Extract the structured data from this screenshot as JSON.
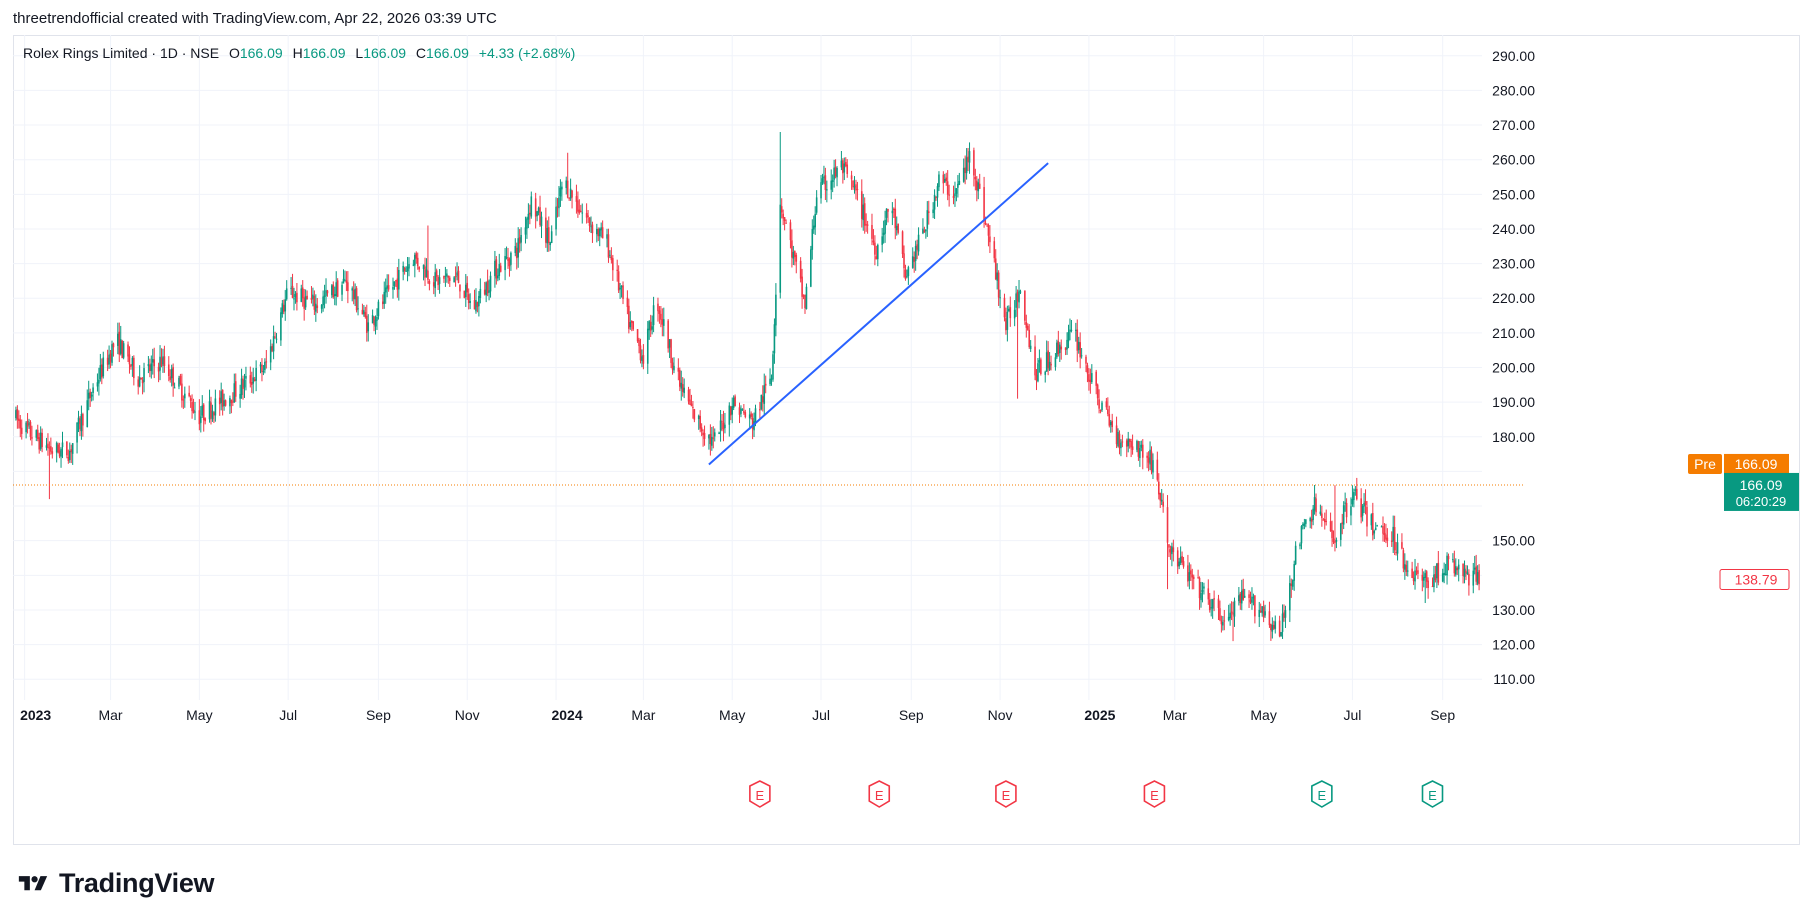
{
  "header": {
    "attribution": "threetrendofficial created with TradingView.com, Apr 22, 2026 03:39 UTC"
  },
  "legend": {
    "symbol": "Rolex Rings Limited · 1D · NSE",
    "open_label": "O",
    "open": "166.09",
    "high_label": "H",
    "high": "166.09",
    "low_label": "L",
    "low": "166.09",
    "close_label": "C",
    "close": "166.09",
    "change": "+4.33 (+2.68%)"
  },
  "footer": {
    "brand": "TradingView"
  },
  "colors": {
    "up": "#089981",
    "down": "#f23645",
    "trendline": "#2962ff",
    "pre_badge": "#f57c00",
    "grid": "#f0f3fa",
    "text": "#131722"
  },
  "chart_data": {
    "type": "candlestick",
    "y_axis": {
      "min": 104,
      "max": 296,
      "ticks": [
        110,
        120,
        130,
        140,
        150,
        160,
        170,
        180,
        190,
        200,
        210,
        220,
        230,
        240,
        250,
        260,
        270,
        280,
        290
      ],
      "tick_labels": [
        "110.00",
        "120.00",
        "130.00",
        "",
        "150.00",
        "",
        "",
        "180.00",
        "190.00",
        "200.00",
        "210.00",
        "220.00",
        "230.00",
        "240.00",
        "250.00",
        "260.00",
        "270.00",
        "280.00",
        "290.00"
      ],
      "scale": "linear",
      "position": "right"
    },
    "x_axis": {
      "start": "2022-12-24",
      "end": "2025-09-28",
      "ticks": [
        {
          "date": "2023-01-01",
          "label": "2023",
          "bold": true
        },
        {
          "date": "2023-03-01",
          "label": "Mar"
        },
        {
          "date": "2023-05-01",
          "label": "May"
        },
        {
          "date": "2023-07-01",
          "label": "Jul"
        },
        {
          "date": "2023-09-01",
          "label": "Sep"
        },
        {
          "date": "2023-11-01",
          "label": "Nov"
        },
        {
          "date": "2024-01-01",
          "label": "2024",
          "bold": true
        },
        {
          "date": "2024-03-01",
          "label": "Mar"
        },
        {
          "date": "2024-05-01",
          "label": "May"
        },
        {
          "date": "2024-07-01",
          "label": "Jul"
        },
        {
          "date": "2024-09-01",
          "label": "Sep"
        },
        {
          "date": "2024-11-01",
          "label": "Nov"
        },
        {
          "date": "2025-01-01",
          "label": "2025",
          "bold": true
        },
        {
          "date": "2025-03-01",
          "label": "Mar"
        },
        {
          "date": "2025-05-01",
          "label": "May"
        },
        {
          "date": "2025-07-01",
          "label": "Jul"
        },
        {
          "date": "2025-09-01",
          "label": "Sep"
        }
      ]
    },
    "grid": true,
    "price_path": [
      [
        "2022-12-24",
        186
      ],
      [
        "2023-01-05",
        181
      ],
      [
        "2023-01-20",
        176
      ],
      [
        "2023-02-01",
        176
      ],
      [
        "2023-02-18",
        195
      ],
      [
        "2023-03-05",
        208
      ],
      [
        "2023-03-20",
        197
      ],
      [
        "2023-04-05",
        202
      ],
      [
        "2023-05-01",
        186
      ],
      [
        "2023-05-25",
        193
      ],
      [
        "2023-06-15",
        200
      ],
      [
        "2023-07-01",
        222
      ],
      [
        "2023-07-20",
        218
      ],
      [
        "2023-08-10",
        225
      ],
      [
        "2023-08-25",
        212
      ],
      [
        "2023-09-10",
        223
      ],
      [
        "2023-09-25",
        232
      ],
      [
        "2023-10-10",
        225
      ],
      [
        "2023-10-25",
        226
      ],
      [
        "2023-11-05",
        217
      ],
      [
        "2023-11-20",
        228
      ],
      [
        "2023-12-05",
        234
      ],
      [
        "2023-12-15",
        248
      ],
      [
        "2023-12-28",
        236
      ],
      [
        "2024-01-06",
        254
      ],
      [
        "2024-01-20",
        244
      ],
      [
        "2024-02-05",
        236
      ],
      [
        "2024-02-20",
        213
      ],
      [
        "2024-03-01",
        203
      ],
      [
        "2024-03-10",
        220
      ],
      [
        "2024-03-25",
        196
      ],
      [
        "2024-04-05",
        186
      ],
      [
        "2024-04-18",
        178
      ],
      [
        "2024-05-01",
        190
      ],
      [
        "2024-05-15",
        184
      ],
      [
        "2024-05-28",
        198
      ],
      [
        "2024-06-03",
        248
      ],
      [
        "2024-06-12",
        232
      ],
      [
        "2024-06-20",
        218
      ],
      [
        "2024-06-28",
        250
      ],
      [
        "2024-07-15",
        258
      ],
      [
        "2024-07-25",
        250
      ],
      [
        "2024-08-08",
        234
      ],
      [
        "2024-08-18",
        248
      ],
      [
        "2024-08-28",
        226
      ],
      [
        "2024-09-10",
        240
      ],
      [
        "2024-09-20",
        254
      ],
      [
        "2024-10-01",
        250
      ],
      [
        "2024-10-12",
        262
      ],
      [
        "2024-10-25",
        236
      ],
      [
        "2024-11-05",
        212
      ],
      [
        "2024-11-15",
        224
      ],
      [
        "2024-11-25",
        198
      ],
      [
        "2024-12-10",
        205
      ],
      [
        "2024-12-22",
        210
      ],
      [
        "2025-01-05",
        193
      ],
      [
        "2025-01-20",
        180
      ],
      [
        "2025-02-01",
        178
      ],
      [
        "2025-02-15",
        172
      ],
      [
        "2025-02-25",
        148
      ],
      [
        "2025-03-10",
        140
      ],
      [
        "2025-03-25",
        132
      ],
      [
        "2025-04-05",
        126
      ],
      [
        "2025-04-15",
        133
      ],
      [
        "2025-05-01",
        130
      ],
      [
        "2025-05-12",
        122
      ],
      [
        "2025-05-25",
        150
      ],
      [
        "2025-06-05",
        160
      ],
      [
        "2025-06-18",
        150
      ],
      [
        "2025-07-01",
        164
      ],
      [
        "2025-07-15",
        154
      ],
      [
        "2025-07-28",
        152
      ],
      [
        "2025-08-08",
        142
      ],
      [
        "2025-08-20",
        138
      ],
      [
        "2025-09-05",
        143
      ],
      [
        "2025-09-18",
        140
      ],
      [
        "2025-09-28",
        138.79
      ]
    ],
    "spikes": [
      {
        "date": "2023-01-18",
        "low": 162
      },
      {
        "date": "2023-03-08",
        "high": 212
      },
      {
        "date": "2023-10-05",
        "high": 241
      },
      {
        "date": "2024-01-09",
        "high": 262
      },
      {
        "date": "2024-03-02",
        "low": 198
      },
      {
        "date": "2024-04-14",
        "low": 174
      },
      {
        "date": "2024-06-03",
        "high": 268
      },
      {
        "date": "2024-06-23",
        "low": 215
      },
      {
        "date": "2024-07-14",
        "high": 277
      },
      {
        "date": "2024-10-12",
        "high": 280
      },
      {
        "date": "2024-11-13",
        "low": 191
      },
      {
        "date": "2025-02-24",
        "low": 136
      },
      {
        "date": "2025-04-10",
        "low": 121
      },
      {
        "date": "2025-05-11",
        "low": 121
      },
      {
        "date": "2025-06-19",
        "high": 166
      },
      {
        "date": "2025-07-01",
        "high": 166
      },
      {
        "date": "2025-08-20",
        "low": 132
      }
    ],
    "trendline": {
      "start": {
        "date": "2024-04-15",
        "price": 172
      },
      "end": {
        "date": "2024-12-04",
        "price": 259
      }
    },
    "earnings_markers": [
      {
        "date": "2024-05-20",
        "label": "E",
        "kind": "negative"
      },
      {
        "date": "2024-08-10",
        "label": "E",
        "kind": "negative"
      },
      {
        "date": "2024-11-05",
        "label": "E",
        "kind": "negative"
      },
      {
        "date": "2025-02-15",
        "label": "E",
        "kind": "negative"
      },
      {
        "date": "2025-06-10",
        "label": "E",
        "kind": "positive"
      },
      {
        "date": "2025-08-25",
        "label": "E",
        "kind": "positive"
      }
    ],
    "current_price": {
      "pre_label": "Pre",
      "pre_value": "166.09",
      "value": "166.09",
      "countdown": "06:20:29",
      "level": 166.09
    },
    "last_close_label": {
      "value": "138.79",
      "level": 138.79
    }
  }
}
